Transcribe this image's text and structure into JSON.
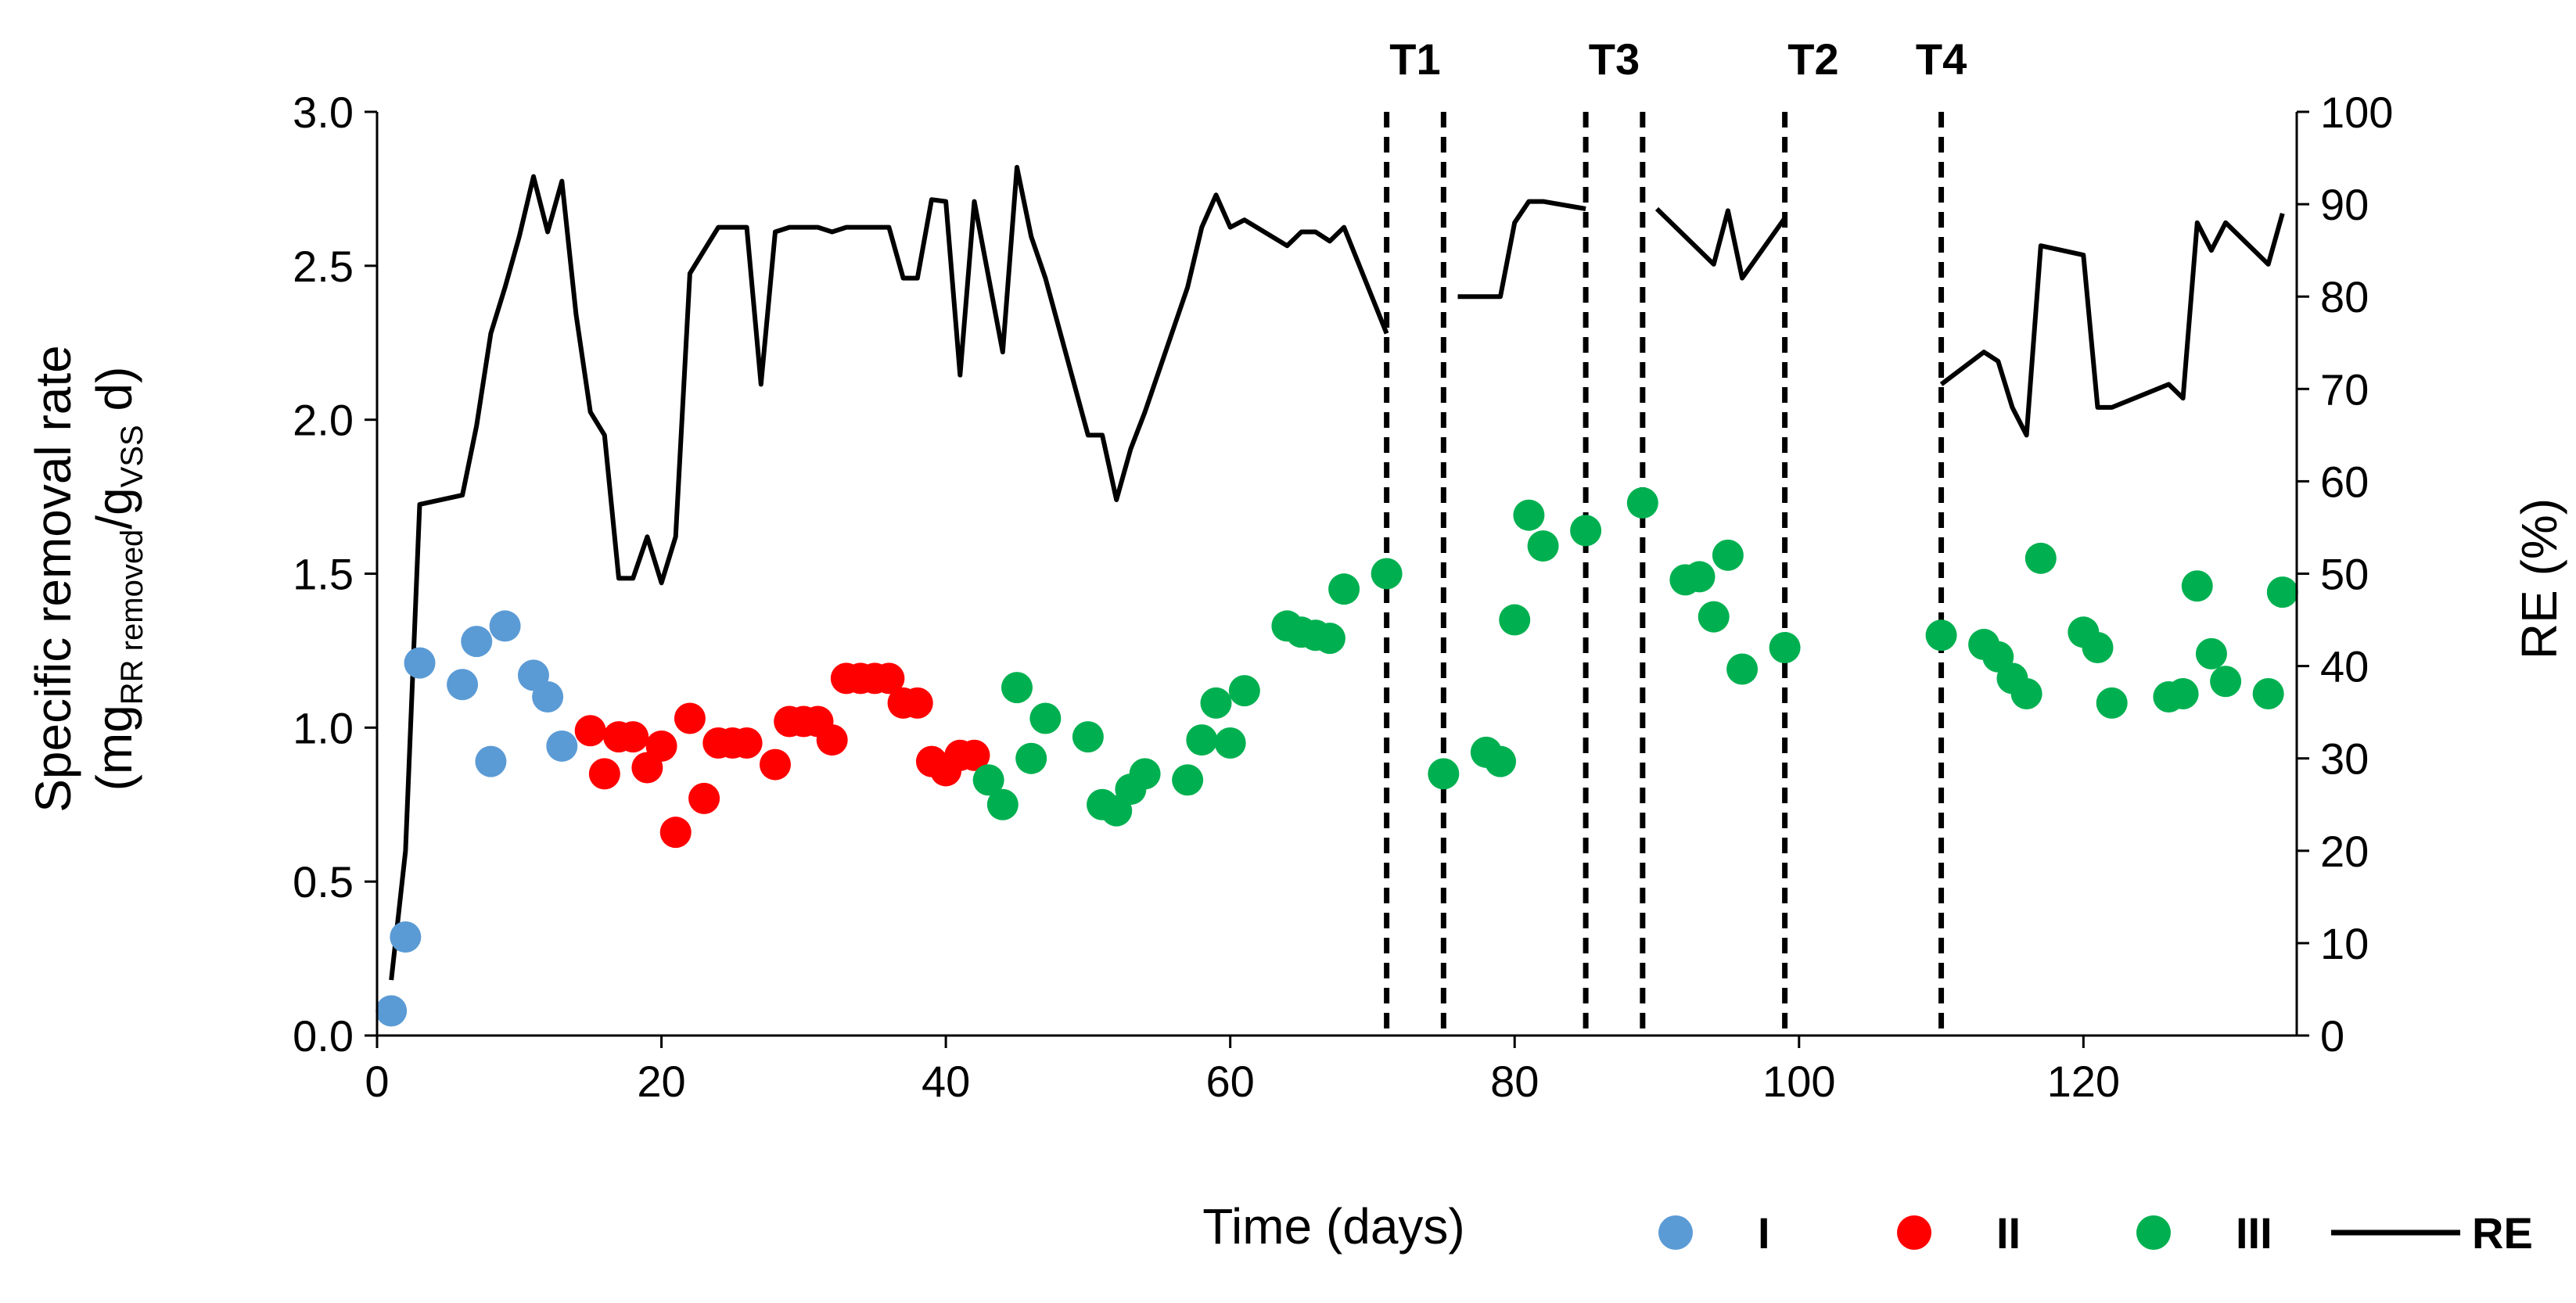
{
  "chart_data": {
    "type": "scatter+line",
    "xlabel": "Time (days)",
    "ylabel_left": {
      "line1": "Specific removal rate",
      "open": "(mg",
      "sub1": "RR removed",
      "mid": "/g",
      "sub2": "VSS",
      "close": " d)"
    },
    "ylabel_right": "RE (%)",
    "xlim": [
      0,
      135
    ],
    "ylim_left": [
      0,
      3.0
    ],
    "ylim_right": [
      0,
      100
    ],
    "x_ticks": [
      0,
      20,
      40,
      60,
      80,
      100,
      120
    ],
    "x_tick_labels": [
      "0",
      "20",
      "40",
      "60",
      "80",
      "100",
      "120"
    ],
    "y_left_ticks": [
      0,
      0.5,
      1.0,
      1.5,
      2.0,
      2.5,
      3.0
    ],
    "y_left_tick_labels": [
      "0.0",
      "0.5",
      "1.0",
      "1.5",
      "2.0",
      "2.5",
      "3.0"
    ],
    "y_right_ticks": [
      0,
      10,
      20,
      30,
      40,
      50,
      60,
      70,
      80,
      90,
      100
    ],
    "y_right_tick_labels": [
      "0",
      "10",
      "20",
      "30",
      "40",
      "50",
      "60",
      "70",
      "80",
      "90",
      "100"
    ],
    "treatments": [
      {
        "label": "T1",
        "day": 73,
        "lines": [
          71,
          75
        ]
      },
      {
        "label": "T3",
        "day": 87,
        "lines": [
          85,
          89
        ]
      },
      {
        "label": "T2",
        "day": 101,
        "lines": [
          99
        ]
      },
      {
        "label": "T4",
        "day": 110,
        "lines": [
          110
        ]
      }
    ],
    "series": [
      {
        "name": "I",
        "kind": "scatter",
        "color": "#5b9bd5",
        "points": [
          [
            1,
            0.08
          ],
          [
            2,
            0.32
          ],
          [
            3,
            1.21
          ],
          [
            6,
            1.14
          ],
          [
            7,
            1.28
          ],
          [
            8,
            0.89
          ],
          [
            9,
            1.33
          ],
          [
            11,
            1.17
          ],
          [
            12,
            1.1
          ],
          [
            13,
            0.94
          ]
        ]
      },
      {
        "name": "II",
        "kind": "scatter",
        "color": "#ff0000",
        "points": [
          [
            15,
            0.99
          ],
          [
            16,
            0.85
          ],
          [
            17,
            0.97
          ],
          [
            18,
            0.97
          ],
          [
            19,
            0.87
          ],
          [
            20,
            0.94
          ],
          [
            21,
            0.66
          ],
          [
            22,
            1.03
          ],
          [
            23,
            0.77
          ],
          [
            24,
            0.95
          ],
          [
            25,
            0.95
          ],
          [
            26,
            0.95
          ],
          [
            28,
            0.88
          ],
          [
            29,
            1.02
          ],
          [
            30,
            1.02
          ],
          [
            31,
            1.02
          ],
          [
            32,
            0.96
          ],
          [
            33,
            1.16
          ],
          [
            34,
            1.16
          ],
          [
            35,
            1.16
          ],
          [
            36,
            1.16
          ],
          [
            37,
            1.08
          ],
          [
            38,
            1.08
          ],
          [
            39,
            0.89
          ],
          [
            40,
            0.86
          ],
          [
            41,
            0.91
          ],
          [
            42,
            0.91
          ]
        ]
      },
      {
        "name": "III",
        "kind": "scatter",
        "color": "#00b050",
        "points": [
          [
            43,
            0.83
          ],
          [
            44,
            0.75
          ],
          [
            45,
            1.13
          ],
          [
            46,
            0.9
          ],
          [
            47,
            1.03
          ],
          [
            50,
            0.97
          ],
          [
            51,
            0.75
          ],
          [
            52,
            0.73
          ],
          [
            53,
            0.8
          ],
          [
            54,
            0.85
          ],
          [
            57,
            0.83
          ],
          [
            58,
            0.96
          ],
          [
            59,
            1.08
          ],
          [
            60,
            0.95
          ],
          [
            61,
            1.12
          ],
          [
            64,
            1.33
          ],
          [
            65,
            1.31
          ],
          [
            66,
            1.3
          ],
          [
            67,
            1.29
          ],
          [
            68,
            1.45
          ],
          [
            71,
            1.5
          ],
          [
            75,
            0.85
          ],
          [
            78,
            0.92
          ],
          [
            79,
            0.89
          ],
          [
            80,
            1.35
          ],
          [
            81,
            1.69
          ],
          [
            82,
            1.59
          ],
          [
            85,
            1.64
          ],
          [
            89,
            1.73
          ],
          [
            92,
            1.48
          ],
          [
            93,
            1.49
          ],
          [
            94,
            1.36
          ],
          [
            95,
            1.56
          ],
          [
            96,
            1.19
          ],
          [
            99,
            1.26
          ],
          [
            110,
            1.3
          ],
          [
            113,
            1.27
          ],
          [
            114,
            1.23
          ],
          [
            115,
            1.16
          ],
          [
            116,
            1.11
          ],
          [
            117,
            1.55
          ],
          [
            120,
            1.31
          ],
          [
            121,
            1.26
          ],
          [
            122,
            1.08
          ],
          [
            126,
            1.1
          ],
          [
            127,
            1.11
          ],
          [
            128,
            1.46
          ],
          [
            129,
            1.24
          ],
          [
            130,
            1.15
          ],
          [
            133,
            1.11
          ],
          [
            134,
            1.44
          ]
        ]
      },
      {
        "name": "RE",
        "kind": "line",
        "color": "#000000",
        "axis": "right",
        "segments": [
          [
            [
              1,
              6
            ],
            [
              2,
              20
            ],
            [
              3,
              57.5
            ],
            [
              6,
              58.5
            ],
            [
              7,
              66
            ],
            [
              8,
              76
            ],
            [
              9,
              81
            ],
            [
              10,
              86.5
            ],
            [
              11,
              93
            ],
            [
              12,
              87
            ],
            [
              13,
              92.5
            ],
            [
              14,
              78
            ],
            [
              15,
              67.5
            ],
            [
              16,
              65
            ],
            [
              17,
              49.5
            ],
            [
              18,
              49.5
            ],
            [
              19,
              54
            ],
            [
              20,
              49
            ],
            [
              21,
              54
            ],
            [
              22,
              82.5
            ],
            [
              23,
              85
            ],
            [
              24,
              87.5
            ],
            [
              25,
              87.5
            ],
            [
              26,
              87.5
            ],
            [
              27,
              70.5
            ],
            [
              28,
              87
            ],
            [
              29,
              87.5
            ],
            [
              30,
              87.5
            ],
            [
              31,
              87.5
            ],
            [
              32,
              87
            ],
            [
              33,
              87.5
            ],
            [
              34,
              87.5
            ],
            [
              35,
              87.5
            ],
            [
              36,
              87.5
            ],
            [
              37,
              82
            ],
            [
              38,
              82
            ],
            [
              39,
              90.5
            ],
            [
              40,
              90.3
            ],
            [
              41,
              71.5
            ],
            [
              42,
              90.3
            ],
            [
              44,
              74
            ],
            [
              45,
              94
            ],
            [
              46,
              86.5
            ],
            [
              47,
              82
            ],
            [
              50,
              65
            ],
            [
              51,
              65
            ],
            [
              52,
              58
            ],
            [
              53,
              63.5
            ],
            [
              54,
              67.5
            ],
            [
              57,
              81
            ],
            [
              58,
              87.5
            ],
            [
              59,
              91
            ],
            [
              60,
              87.5
            ],
            [
              61,
              88.3
            ],
            [
              64,
              85.5
            ],
            [
              65,
              87
            ],
            [
              66,
              87
            ],
            [
              67,
              86
            ],
            [
              68,
              87.5
            ],
            [
              71,
              76
            ]
          ],
          [
            [
              76,
              80
            ],
            [
              79,
              80
            ],
            [
              80,
              88
            ],
            [
              81,
              90.3
            ],
            [
              82,
              90.3
            ],
            [
              85,
              89.5
            ]
          ],
          [
            [
              90,
              89.5
            ],
            [
              94,
              83.5
            ],
            [
              95,
              89.3
            ],
            [
              96,
              82
            ],
            [
              99,
              88.5
            ]
          ],
          [
            [
              110,
              70.5
            ],
            [
              113,
              74
            ],
            [
              114,
              73
            ],
            [
              115,
              68
            ],
            [
              116,
              65
            ],
            [
              117,
              85.5
            ],
            [
              120,
              84.5
            ],
            [
              121,
              68
            ],
            [
              122,
              68
            ],
            [
              126,
              70.5
            ],
            [
              127,
              69
            ],
            [
              128,
              88
            ],
            [
              129,
              85
            ],
            [
              130,
              88
            ],
            [
              133,
              83.5
            ],
            [
              134,
              89
            ]
          ]
        ]
      }
    ],
    "legend": [
      {
        "label": "I",
        "kind": "dot",
        "color": "#5b9bd5"
      },
      {
        "label": "II",
        "kind": "dot",
        "color": "#ff0000"
      },
      {
        "label": "III",
        "kind": "dot",
        "color": "#00b050"
      },
      {
        "label": "RE",
        "kind": "line",
        "color": "#000000"
      }
    ]
  }
}
